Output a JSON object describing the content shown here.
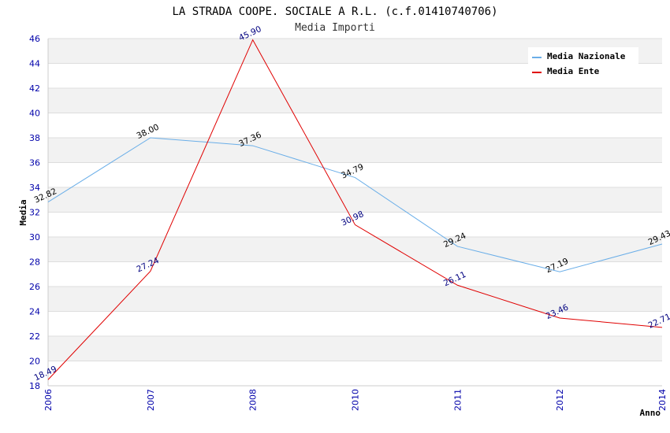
{
  "chart_data": {
    "type": "line",
    "title": "LA STRADA COOPE. SOCIALE A R.L. (c.f.01410740706)",
    "subtitle": "Media Importi",
    "xlabel": "Anno",
    "ylabel": "Media",
    "categories": [
      "2006",
      "2007",
      "2008",
      "2010",
      "2011",
      "2012",
      "2014"
    ],
    "ylim": [
      18,
      46
    ],
    "yticks": [
      18,
      20,
      22,
      24,
      26,
      28,
      30,
      32,
      34,
      36,
      38,
      40,
      42,
      44,
      46
    ],
    "grid": true,
    "legend_position": "top-right",
    "series": [
      {
        "name": "Media Nazionale",
        "color": "#6aaee8",
        "label_color": "#000000",
        "values": [
          32.82,
          38.0,
          37.36,
          34.79,
          29.24,
          27.19,
          29.43
        ],
        "labels": [
          "32.82",
          "38.00",
          "37.36",
          "34.79",
          "29.24",
          "27.19",
          "29.43"
        ]
      },
      {
        "name": "Media Ente",
        "color": "#e00000",
        "label_color": "#000080",
        "values": [
          18.49,
          27.24,
          45.9,
          30.98,
          26.11,
          23.46,
          22.71
        ],
        "labels": [
          "18.49",
          "27.24",
          "45.90",
          "30.98",
          "26.11",
          "23.46",
          "22.71"
        ]
      }
    ]
  }
}
